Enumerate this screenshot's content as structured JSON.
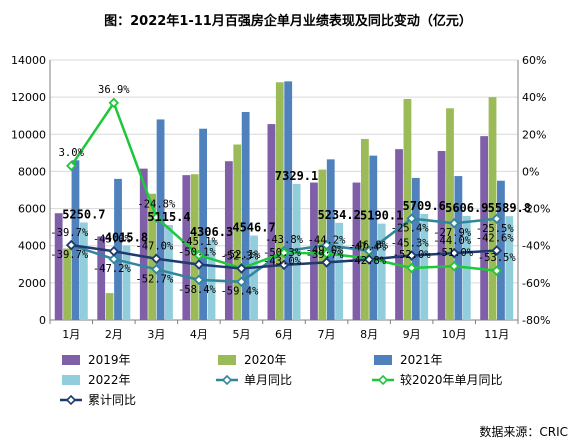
{
  "source_label": "数据来源：CRIC",
  "colors": {
    "y2019": "#7f5fa8",
    "y2020": "#9bbb59",
    "y2021": "#4f81bd",
    "y2022": "#92cddc",
    "monthly_yoy": "#31859c",
    "vs2020": "#1fc73a",
    "cumulative_yoy": "#1f3a6e",
    "grid": "#d9d9d9",
    "axis": "#7f7f7f"
  },
  "chart_data": {
    "type": "bar",
    "title": "图：2022年1-11月百强房企单月业绩表现及同比变动（亿元）",
    "categories": [
      "1月",
      "2月",
      "3月",
      "4月",
      "5月",
      "6月",
      "7月",
      "8月",
      "9月",
      "10月",
      "11月"
    ],
    "ylim": [
      0,
      14000
    ],
    "y_ticks": [
      0,
      2000,
      4000,
      6000,
      8000,
      10000,
      12000,
      14000
    ],
    "y2lim": [
      -80,
      60
    ],
    "y2_ticks": [
      "60%",
      "40%",
      "20%",
      "0%",
      "-20%",
      "-40%",
      "-60%",
      "-80%"
    ],
    "y2_tick_values": [
      60,
      40,
      20,
      0,
      -20,
      -40,
      -60,
      -80
    ],
    "bar_series": [
      {
        "name": "2019年",
        "values": [
          5750,
          4500,
          8150,
          7800,
          8550,
          10550,
          7400,
          7400,
          9200,
          9100,
          9900
        ]
      },
      {
        "name": "2020年",
        "values": [
          3850,
          1450,
          6800,
          7850,
          9450,
          12800,
          8100,
          9750,
          11900,
          11400,
          12000
        ]
      },
      {
        "name": "2021年",
        "values": [
          8600,
          7600,
          10800,
          10300,
          11200,
          12850,
          8650,
          8850,
          7650,
          7750,
          7500
        ]
      },
      {
        "name": "2022年",
        "values": [
          5250.7,
          4015.8,
          5115.4,
          4306.3,
          4546.7,
          7329.1,
          5234.2,
          5190.1,
          5709.6,
          5606.9,
          5589.8
        ]
      }
    ],
    "bar_labels": [
      "5250.7",
      "4015.8",
      "5115.4",
      "4306.3",
      "4546.7",
      "7329.1",
      "5234.2",
      "5190.1",
      "5709.6",
      "5606.9",
      "5589.8"
    ],
    "line_series": [
      {
        "name": "单月同比",
        "values": [
          -39.7,
          -47.2,
          -52.7,
          -58.4,
          -59.4,
          -43.0,
          -39.7,
          -42.8,
          -25.4,
          -27.9,
          -25.5
        ],
        "labels": [
          "-39.7%",
          "-47.2%",
          "-52.7%",
          "-58.4%",
          "-59.4%",
          "-43.0%",
          "-39.7%",
          "-42.8%",
          "-25.4%",
          "-27.9%",
          "-25.5%"
        ]
      },
      {
        "name": "较2020年单月同比",
        "values": [
          3.0,
          36.9,
          -24.8,
          -45.1,
          -52.1,
          -43.8,
          -44.2,
          -46.8,
          -52.0,
          -51.0,
          -53.5
        ],
        "labels": [
          "3.0%",
          "36.9%",
          "-24.8%",
          "-45.1%",
          "-52.1%",
          "-43.8%",
          "-44.2%",
          "-46.8%",
          "-52.0%",
          "-51.0%",
          "-53.5%"
        ]
      },
      {
        "name": "累计同比",
        "values": [
          -39.7,
          -43.0,
          -47.0,
          -50.1,
          -52.3,
          -50.3,
          -49.0,
          -47.4,
          -45.3,
          -44.0,
          -42.6
        ],
        "labels": [
          "-39.7%",
          "-43.0%",
          "-47.0%",
          "-50.1%",
          "-52.3%",
          "-50.3%",
          "-49.0%",
          "-47.4%",
          "-45.3%",
          "-44.0%",
          "-42.6%"
        ]
      }
    ],
    "legend": [
      {
        "name": "2019年",
        "kind": "bar"
      },
      {
        "name": "2020年",
        "kind": "bar"
      },
      {
        "name": "2021年",
        "kind": "bar"
      },
      {
        "name": "2022年",
        "kind": "bar"
      },
      {
        "name": "单月同比",
        "kind": "line"
      },
      {
        "name": "较2020年单月同比",
        "kind": "line"
      },
      {
        "name": "累计同比",
        "kind": "line"
      }
    ],
    "legend_position": "bottom",
    "grid": true
  }
}
